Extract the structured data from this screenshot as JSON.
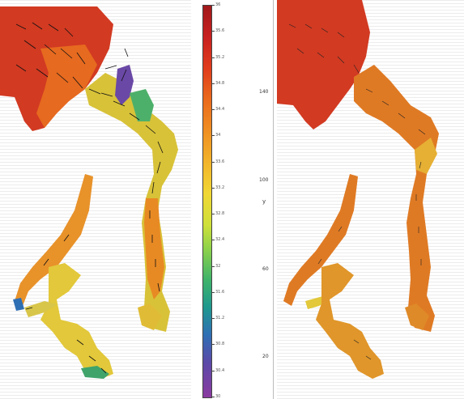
{
  "colorbar": {
    "ticks": [
      "36",
      "35.6",
      "35.2",
      "34.8",
      "34.4",
      "34",
      "33.6",
      "33.2",
      "32.8",
      "32.4",
      "32",
      "31.6",
      "31.2",
      "30.8",
      "30.4",
      "30"
    ],
    "colors": [
      "#a0181a",
      "#e03c1c",
      "#ef8e22",
      "#f2b42a",
      "#f1d734",
      "#8ed24a",
      "#1f988e",
      "#2f6fb4",
      "#8a3aa0"
    ]
  },
  "y_axis": {
    "title": "y",
    "ticks": [
      "140",
      "100",
      "60",
      "20"
    ]
  }
}
